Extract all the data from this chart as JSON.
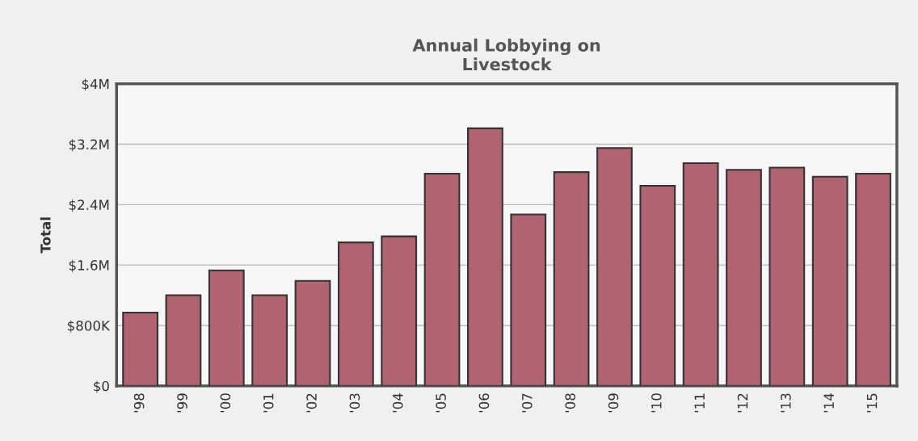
{
  "chart_data": {
    "type": "bar",
    "title": "Annual Lobbying on\nLivestock",
    "ylabel": "Total",
    "categories": [
      "'98",
      "'99",
      "'00",
      "'01",
      "'02",
      "'03",
      "'04",
      "'05",
      "'06",
      "'07",
      "'08",
      "'09",
      "'10",
      "'11",
      "'12",
      "'13",
      "'14",
      "'15"
    ],
    "values": [
      970000,
      1200000,
      1530000,
      1200000,
      1390000,
      1900000,
      1980000,
      2810000,
      3410000,
      2270000,
      2830000,
      3150000,
      2650000,
      2950000,
      2860000,
      2890000,
      2770000,
      2810000
    ],
    "color": "#b06371",
    "ylim": [
      0,
      4000000
    ],
    "yticks": [
      {
        "value": 0,
        "label": "$0"
      },
      {
        "value": 800000,
        "label": "$800K"
      },
      {
        "value": 1600000,
        "label": "$1.6M"
      },
      {
        "value": 2400000,
        "label": "$2.4M"
      },
      {
        "value": 3200000,
        "label": "$3.2M"
      },
      {
        "value": 4000000,
        "label": "$4M"
      }
    ],
    "grid": "y",
    "legend": false
  }
}
